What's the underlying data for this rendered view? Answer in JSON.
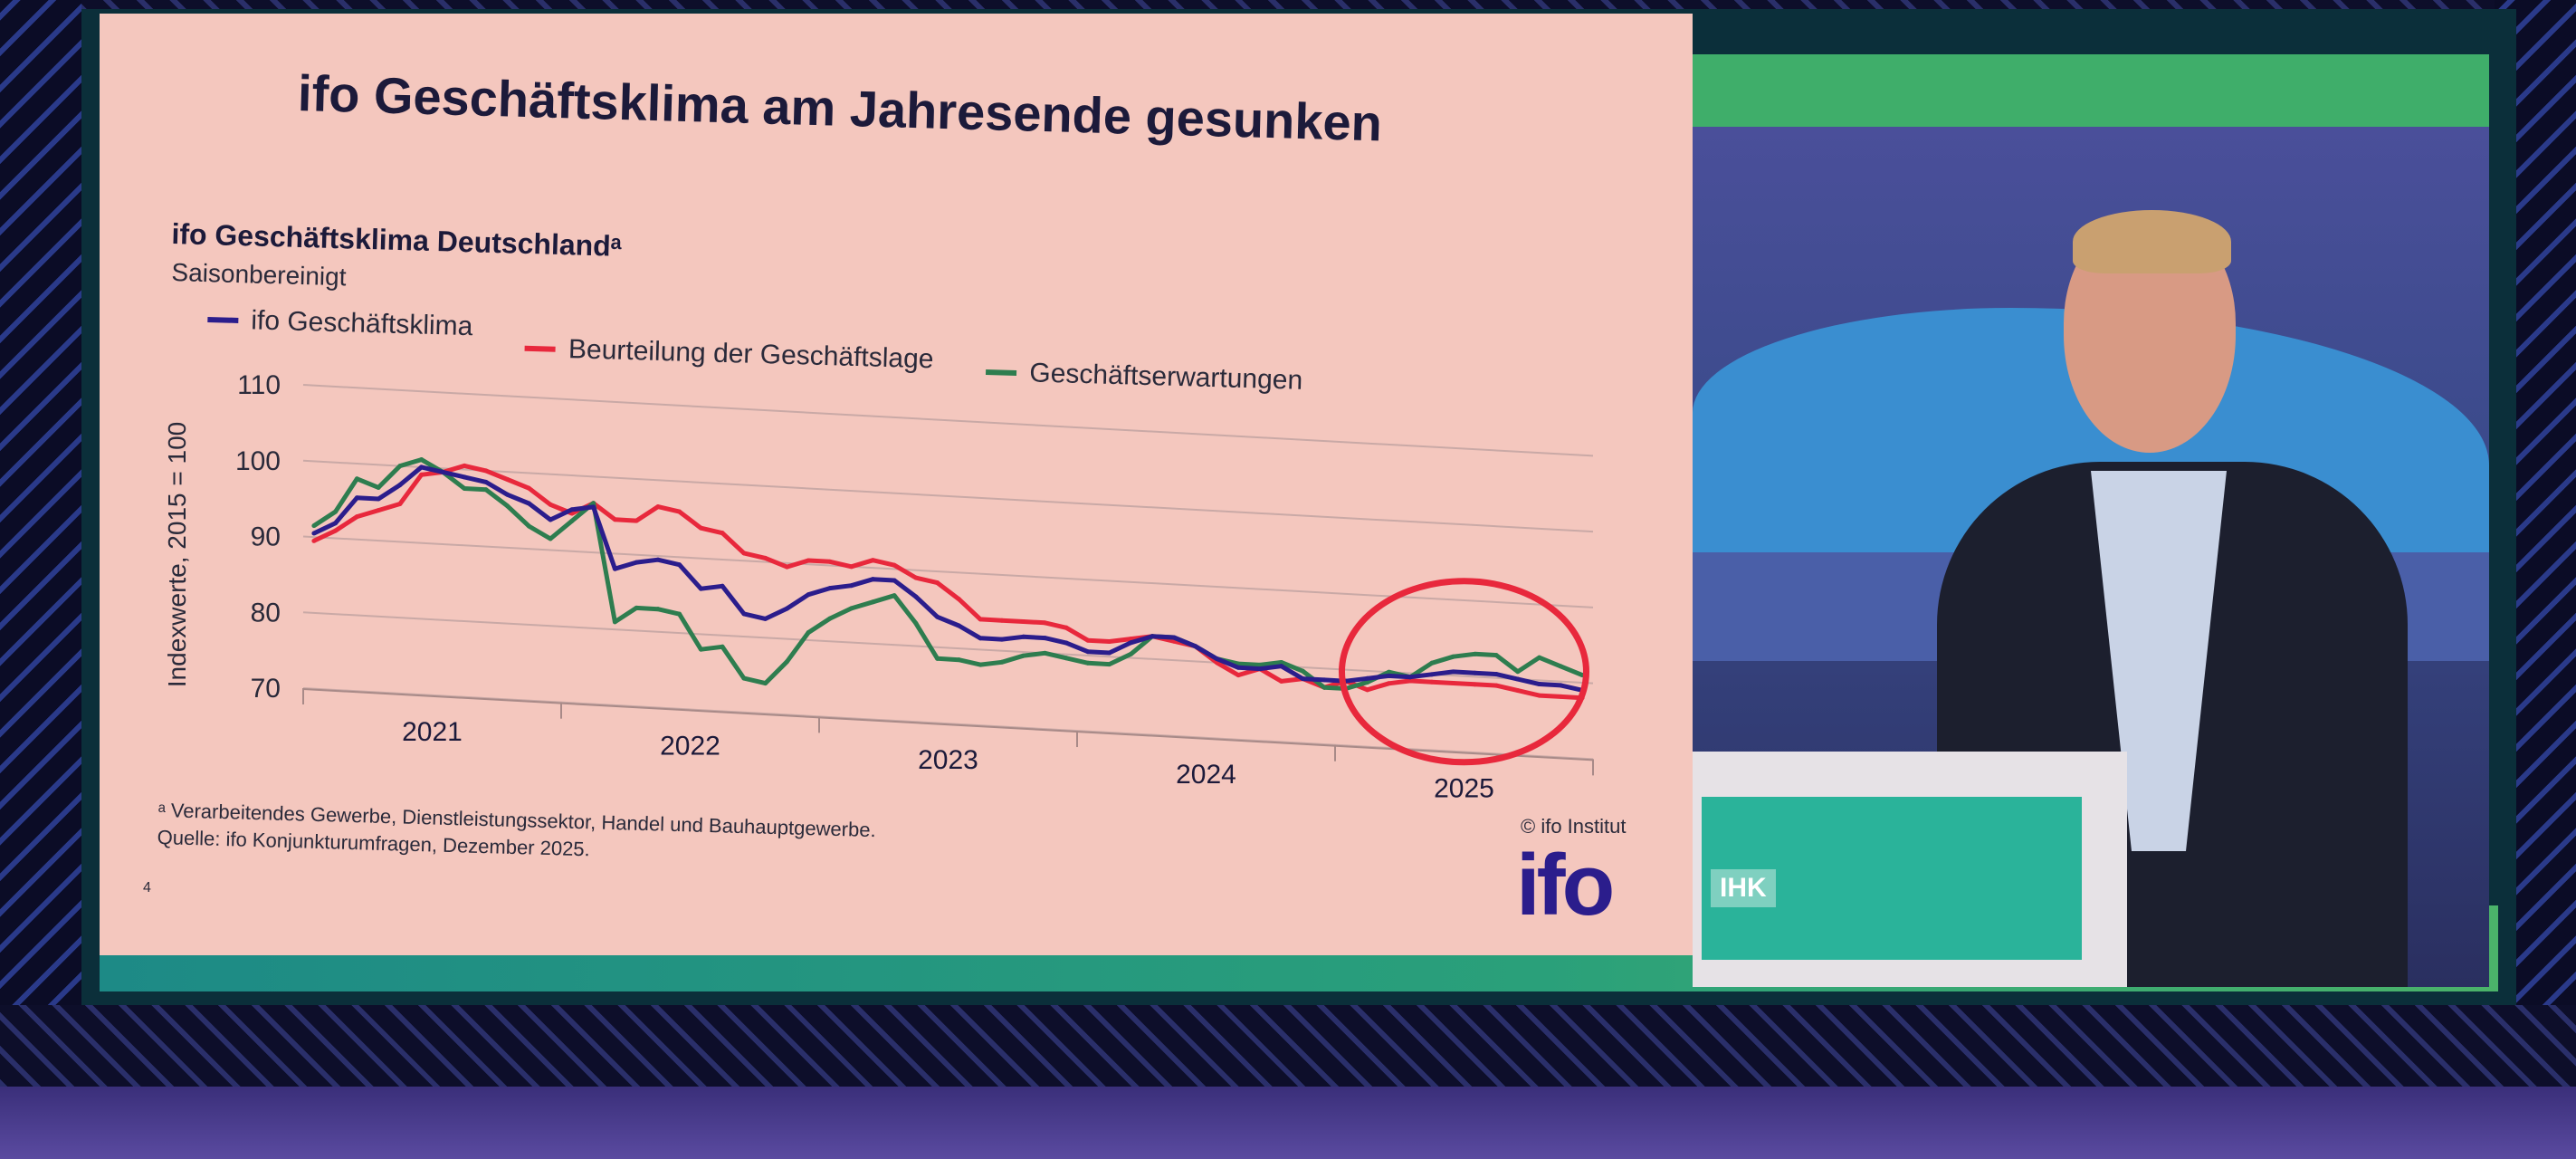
{
  "slide": {
    "title": "ifo Geschäftsklima am Jahresende gesunken",
    "footnote_1": "ᵃ Verarbeitendes Gewerbe, Dienstleistungssektor, Handel und Bauhauptgewerbe.",
    "footnote_2": "Quelle: ifo Konjunkturumfragen, Dezember 2025.",
    "copyright": "© ifo Institut",
    "page_number": "4",
    "logo_text": "ifo"
  },
  "video": {
    "podium_logo_text": "IHK"
  },
  "colors": {
    "climate": "#2b1d8c",
    "situation": "#e8283c",
    "expectations": "#2e7d4f",
    "highlight_circle": "#e8283c",
    "slide_background": "#f4c7be"
  },
  "chart_data": {
    "type": "line",
    "title": "ifo Geschäftsklima Deutschlandᵃ",
    "subtitle": "Saisonbereinigt",
    "xlabel": "",
    "ylabel": "Indexwerte, 2015 = 100",
    "ylim": [
      70,
      110
    ],
    "yticks": [
      "70",
      "80",
      "90",
      "100",
      "110"
    ],
    "xticks": [
      "2021",
      "2022",
      "2023",
      "2024",
      "2025"
    ],
    "x_start": "2021-01",
    "x_end": "2025-12",
    "frequency": "monthly",
    "grid": true,
    "legend_position": "top",
    "annotation": "red circle around 2025 values",
    "series": [
      {
        "name": "ifo Geschäftsklima",
        "color_key": "climate",
        "values": [
          90.5,
          92,
          95.5,
          95.5,
          97.5,
          100,
          99.5,
          99,
          98.5,
          97,
          96,
          94,
          95.5,
          96,
          88,
          89,
          89.5,
          89,
          86,
          86.5,
          83,
          82.5,
          84,
          86,
          87,
          87.5,
          88.5,
          88.5,
          86.5,
          84,
          83,
          81.5,
          81.5,
          82,
          82,
          81.5,
          80.5,
          80.5,
          82,
          83,
          83,
          82,
          80.5,
          79.5,
          79.5,
          80,
          78.5,
          78.5,
          78.5,
          79,
          79.5,
          79.5,
          80,
          80.5,
          80.5,
          80.5,
          80,
          79.5,
          79.5,
          79
        ]
      },
      {
        "name": "Beurteilung der Geschäftslage",
        "color_key": "situation",
        "values": [
          89.5,
          91,
          93,
          94,
          95,
          99,
          99.5,
          100.5,
          100,
          99,
          98,
          96,
          95,
          96.5,
          94.5,
          94.5,
          96.5,
          96,
          94,
          93.5,
          91,
          90.5,
          89.5,
          90.5,
          90.5,
          90,
          91,
          90.5,
          89,
          88.5,
          86.5,
          84,
          84,
          84,
          84,
          83.5,
          82,
          82,
          82.5,
          83,
          82.5,
          82,
          80,
          78.5,
          79.5,
          78,
          78.5,
          77.5,
          78.5,
          77.5,
          78.5,
          79,
          79,
          79,
          79,
          79,
          78.5,
          78,
          78,
          78
        ]
      },
      {
        "name": "Geschäftserwartungen",
        "color_key": "expectations",
        "values": [
          91.5,
          93.5,
          98,
          97,
          100,
          101,
          99.5,
          97.5,
          97.5,
          95.5,
          93,
          91.5,
          94,
          96.5,
          81,
          83,
          83,
          82.5,
          78,
          78.5,
          74.5,
          74,
          77,
          81,
          83,
          84.5,
          85.5,
          86.5,
          83,
          78.5,
          78.5,
          78,
          78.5,
          79.5,
          80,
          79.5,
          79,
          79,
          80.5,
          83,
          83,
          82,
          80.5,
          80,
          80,
          80.5,
          79.5,
          77.5,
          77.5,
          78.5,
          80,
          79.5,
          81.5,
          82.5,
          83,
          83,
          81,
          83,
          82,
          81
        ]
      }
    ]
  }
}
